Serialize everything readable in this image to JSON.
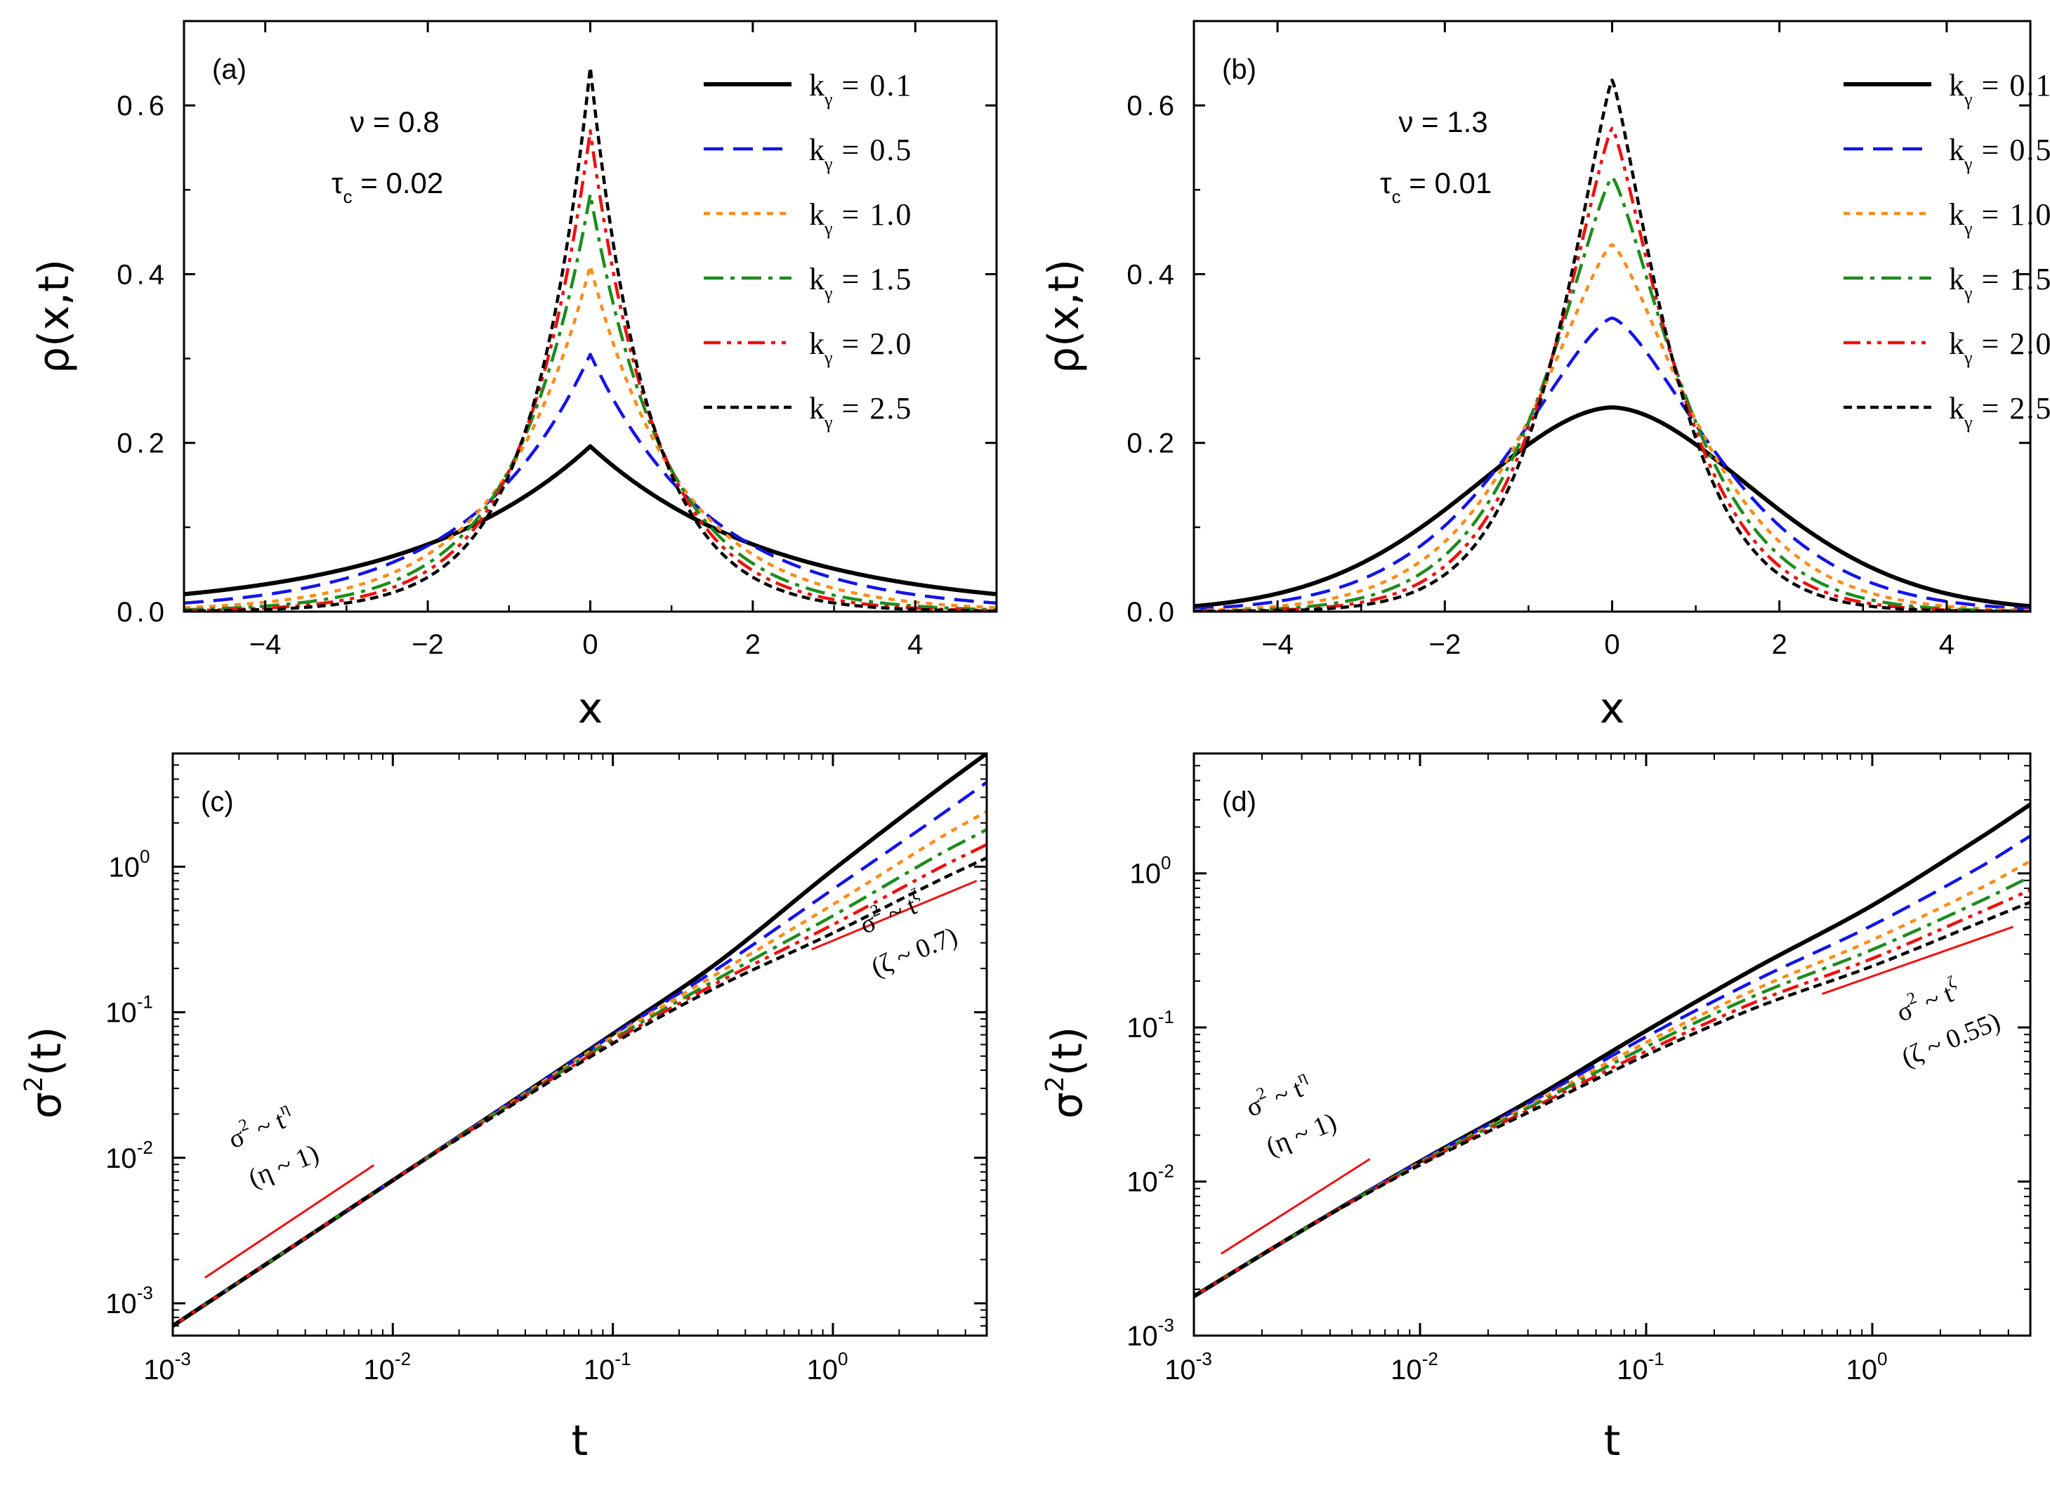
{
  "panels": [
    {
      "id": "a",
      "label": "(a)",
      "xlabel": "x",
      "ylabel": "ρ(x,t)",
      "nu_text": "ν = 0.8",
      "tau_sym": "τ",
      "tau_sub": "c",
      "tau_val": " = 0.02",
      "xticks": [
        "−4",
        "−2",
        "0",
        "2",
        "4"
      ],
      "yticks": [
        "0.0",
        "0.2",
        "0.4",
        "0.6"
      ]
    },
    {
      "id": "b",
      "label": "(b)",
      "xlabel": "x",
      "ylabel": "ρ(x,t)",
      "nu_text": "ν = 1.3",
      "tau_sym": "τ",
      "tau_sub": "c",
      "tau_val": " = 0.01",
      "xticks": [
        "−4",
        "−2",
        "0",
        "2",
        "4"
      ],
      "yticks": [
        "0.0",
        "0.2",
        "0.4",
        "0.6"
      ]
    },
    {
      "id": "c",
      "label": "(c)",
      "xlabel": "t",
      "ylabel_base": "σ",
      "ylabel_sup": "2",
      "ylabel_rest": "(t)",
      "annot1": {
        "pre": "σ",
        "pre_sup": "2",
        "mid": " ~ t",
        "mid_sup": "η",
        "line2": "(η ~ 1)"
      },
      "annot2": {
        "pre": "σ",
        "pre_sup": "2",
        "mid": " ~ t",
        "mid_sup": "ζ",
        "line2": "(ζ ~ 0.7)"
      },
      "xticks": [
        {
          "base": "10",
          "exp": "-3"
        },
        {
          "base": "10",
          "exp": "-2"
        },
        {
          "base": "10",
          "exp": "-1"
        },
        {
          "base": "10",
          "exp": "0"
        }
      ],
      "yticks": [
        {
          "base": "10",
          "exp": "-3"
        },
        {
          "base": "10",
          "exp": "-2"
        },
        {
          "base": "10",
          "exp": "-1"
        },
        {
          "base": "10",
          "exp": "0"
        }
      ]
    },
    {
      "id": "d",
      "label": "(d)",
      "xlabel": "t",
      "ylabel_base": "σ",
      "ylabel_sup": "2",
      "ylabel_rest": "(t)",
      "annot1": {
        "pre": "σ",
        "pre_sup": "2",
        "mid": " ~ t",
        "mid_sup": "η",
        "line2": "(η ~ 1)"
      },
      "annot2": {
        "pre": "σ",
        "pre_sup": "2",
        "mid": " ~ t",
        "mid_sup": "ζ",
        "line2": "(ζ ~ 0.55)"
      },
      "xticks": [
        {
          "base": "10",
          "exp": "-3"
        },
        {
          "base": "10",
          "exp": "-2"
        },
        {
          "base": "10",
          "exp": "-1"
        },
        {
          "base": "10",
          "exp": "0"
        }
      ],
      "yticks": [
        {
          "base": "10",
          "exp": "-3"
        },
        {
          "base": "10",
          "exp": "-2"
        },
        {
          "base": "10",
          "exp": "-1"
        },
        {
          "base": "10",
          "exp": "0"
        }
      ]
    }
  ],
  "legend": [
    {
      "k": "k",
      "sub": "γ",
      "val": " = 0.1",
      "color": "#000000"
    },
    {
      "k": "k",
      "sub": "γ",
      "val": " = 0.5",
      "color": "#1414e6"
    },
    {
      "k": "k",
      "sub": "γ",
      "val": " = 1.0",
      "color": "#ff8c1a"
    },
    {
      "k": "k",
      "sub": "γ",
      "val": " = 1.5",
      "color": "#1e8c1e"
    },
    {
      "k": "k",
      "sub": "γ",
      "val": " = 2.0",
      "color": "#ee1111"
    },
    {
      "k": "k",
      "sub": "γ",
      "val": " = 2.5",
      "color": "#000000"
    }
  ],
  "chart_data": [
    {
      "panel": "a",
      "type": "line",
      "title": "",
      "xlabel": "x",
      "ylabel": "ρ(x,t)",
      "xlim": [
        -5,
        5
      ],
      "ylim": [
        0,
        0.7
      ],
      "series": [
        {
          "name": "k_γ = 0.1",
          "peak": 0.196,
          "shape": "cusp",
          "decay": 0.45,
          "exponent": 1.0
        },
        {
          "name": "k_γ = 0.5",
          "peak": 0.305,
          "shape": "cusp",
          "decay": 0.68,
          "exponent": 1.0
        },
        {
          "name": "k_γ = 1.0",
          "peak": 0.41,
          "shape": "cusp",
          "decay": 0.9,
          "exponent": 1.0
        },
        {
          "name": "k_γ = 1.5",
          "peak": 0.495,
          "shape": "cusp",
          "decay": 1.08,
          "exponent": 1.0
        },
        {
          "name": "k_γ = 2.0",
          "peak": 0.57,
          "shape": "cusp",
          "decay": 1.23,
          "exponent": 1.0
        },
        {
          "name": "k_γ = 2.5",
          "peak": 0.645,
          "shape": "cusp",
          "decay": 1.38,
          "exponent": 1.0
        }
      ]
    },
    {
      "panel": "b",
      "type": "line",
      "title": "",
      "xlabel": "x",
      "ylabel": "ρ(x,t)",
      "xlim": [
        -5,
        5
      ],
      "ylim": [
        0,
        0.7
      ],
      "series": [
        {
          "name": "k_γ = 0.1",
          "peak": 0.242,
          "shape": "smooth",
          "decay": 0.2,
          "exponent": 1.8
        },
        {
          "name": "k_γ = 0.5",
          "peak": 0.348,
          "shape": "cusp",
          "decay": 0.45,
          "exponent": 1.45
        },
        {
          "name": "k_γ = 1.0",
          "peak": 0.435,
          "shape": "cusp",
          "decay": 0.65,
          "exponent": 1.35
        },
        {
          "name": "k_γ = 1.5",
          "peak": 0.515,
          "shape": "cusp",
          "decay": 0.83,
          "exponent": 1.3
        },
        {
          "name": "k_γ = 2.0",
          "peak": 0.573,
          "shape": "cusp",
          "decay": 0.98,
          "exponent": 1.27
        },
        {
          "name": "k_γ = 2.5",
          "peak": 0.63,
          "shape": "cusp",
          "decay": 1.12,
          "exponent": 1.25
        }
      ]
    },
    {
      "panel": "c",
      "type": "line",
      "title": "",
      "xlabel": "t",
      "ylabel": "σ²(t)",
      "xscale": "log",
      "yscale": "log",
      "xlim": [
        0.001,
        5
      ],
      "ylim": [
        0.0006,
        6
      ],
      "series": [
        {
          "name": "k_γ = 0.1",
          "t": [
            0.001,
            0.01,
            0.03,
            0.1,
            0.3,
            1,
            3,
            5
          ],
          "values": [
            0.0007,
            0.007,
            0.021,
            0.071,
            0.22,
            0.95,
            3.4,
            6.0
          ]
        },
        {
          "name": "k_γ = 0.5",
          "t": [
            0.001,
            0.01,
            0.03,
            0.1,
            0.3,
            1,
            3,
            5
          ],
          "values": [
            0.0007,
            0.007,
            0.021,
            0.07,
            0.2,
            0.7,
            2.2,
            3.8
          ]
        },
        {
          "name": "k_γ = 1.0",
          "t": [
            0.001,
            0.01,
            0.03,
            0.1,
            0.3,
            1,
            3,
            5
          ],
          "values": [
            0.0007,
            0.007,
            0.0208,
            0.068,
            0.185,
            0.55,
            1.55,
            2.4
          ]
        },
        {
          "name": "k_γ = 1.5",
          "t": [
            0.001,
            0.01,
            0.03,
            0.1,
            0.3,
            1,
            3,
            5
          ],
          "values": [
            0.0007,
            0.007,
            0.0205,
            0.065,
            0.17,
            0.46,
            1.2,
            1.8
          ]
        },
        {
          "name": "k_γ = 2.0",
          "t": [
            0.001,
            0.01,
            0.03,
            0.1,
            0.3,
            1,
            3,
            5
          ],
          "values": [
            0.0007,
            0.007,
            0.0203,
            0.063,
            0.16,
            0.4,
            0.97,
            1.42
          ]
        },
        {
          "name": "k_γ = 2.5",
          "t": [
            0.001,
            0.01,
            0.03,
            0.1,
            0.3,
            1,
            3,
            5
          ],
          "values": [
            0.0007,
            0.007,
            0.02,
            0.061,
            0.15,
            0.35,
            0.8,
            1.15
          ]
        }
      ],
      "guides": [
        {
          "t": [
            0.0014,
            0.0082
          ],
          "values": [
            0.0015,
            0.0089
          ]
        },
        {
          "t": [
            0.8,
            4.5
          ],
          "values": [
            0.27,
            0.8
          ]
        }
      ]
    },
    {
      "panel": "d",
      "type": "line",
      "title": "",
      "xlabel": "t",
      "ylabel": "σ²(t)",
      "xscale": "log",
      "yscale": "log",
      "xlim": [
        0.001,
        5
      ],
      "ylim": [
        0.001,
        6
      ],
      "series": [
        {
          "name": "k_γ = 0.1",
          "t": [
            0.001,
            0.003,
            0.01,
            0.03,
            0.1,
            0.3,
            1,
            3,
            5
          ],
          "values": [
            0.0018,
            0.0048,
            0.0135,
            0.033,
            0.095,
            0.24,
            0.62,
            1.7,
            2.8
          ]
        },
        {
          "name": "k_γ = 0.5",
          "t": [
            0.001,
            0.003,
            0.01,
            0.03,
            0.1,
            0.3,
            1,
            3,
            5
          ],
          "values": [
            0.0018,
            0.0048,
            0.0135,
            0.032,
            0.087,
            0.2,
            0.46,
            1.1,
            1.75
          ]
        },
        {
          "name": "k_γ = 1.0",
          "t": [
            0.001,
            0.003,
            0.01,
            0.03,
            0.1,
            0.3,
            1,
            3,
            5
          ],
          "values": [
            0.0018,
            0.0048,
            0.0133,
            0.031,
            0.08,
            0.175,
            0.37,
            0.8,
            1.2
          ]
        },
        {
          "name": "k_γ = 1.5",
          "t": [
            0.001,
            0.003,
            0.01,
            0.03,
            0.1,
            0.3,
            1,
            3,
            5
          ],
          "values": [
            0.0018,
            0.0048,
            0.0132,
            0.03,
            0.075,
            0.16,
            0.32,
            0.66,
            0.95
          ]
        },
        {
          "name": "k_γ = 2.0",
          "t": [
            0.001,
            0.003,
            0.01,
            0.03,
            0.1,
            0.3,
            1,
            3,
            5
          ],
          "values": [
            0.0018,
            0.0048,
            0.013,
            0.029,
            0.07,
            0.145,
            0.28,
            0.56,
            0.78
          ]
        },
        {
          "name": "k_γ = 2.5",
          "t": [
            0.001,
            0.003,
            0.01,
            0.03,
            0.1,
            0.3,
            1,
            3,
            5
          ],
          "values": [
            0.0018,
            0.0048,
            0.0128,
            0.028,
            0.066,
            0.133,
            0.25,
            0.48,
            0.65
          ]
        }
      ],
      "guides": [
        {
          "t": [
            0.00132,
            0.006
          ],
          "values": [
            0.0034,
            0.014
          ]
        },
        {
          "t": [
            0.6,
            4.2
          ],
          "values": [
            0.165,
            0.45
          ]
        }
      ]
    }
  ]
}
